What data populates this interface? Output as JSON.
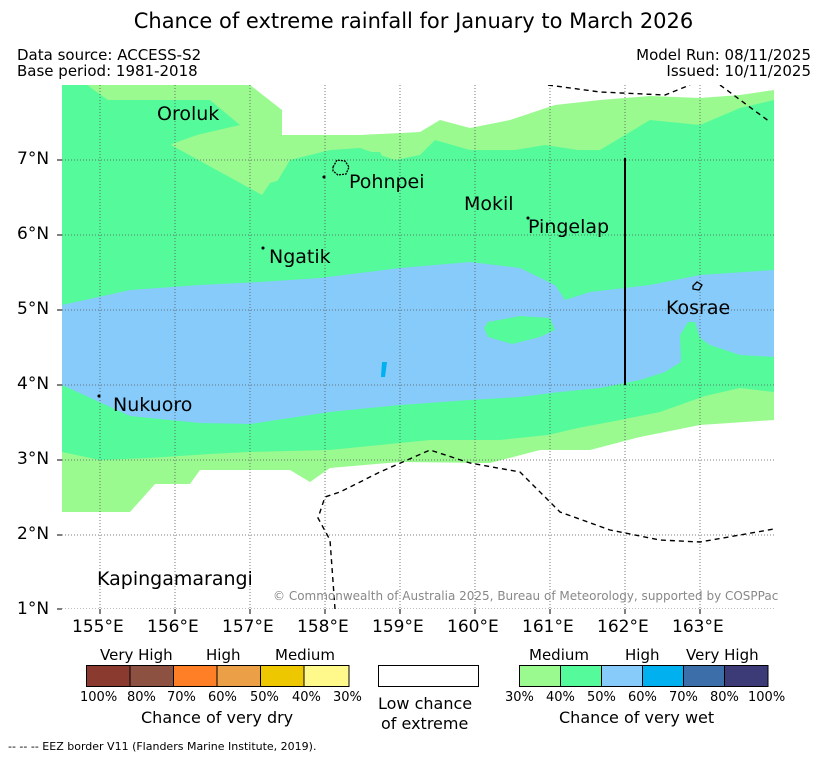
{
  "title": "Chance of extreme rainfall for January to March 2026",
  "meta": {
    "data_source": "Data source: ACCESS-S2",
    "base_period": "Base period: 1981-2018",
    "model_run": "Model Run: 08/11/2025",
    "issued": "Issued: 10/11/2025"
  },
  "axes": {
    "lon_labels": [
      "155°E",
      "156°E",
      "157°E",
      "158°E",
      "159°E",
      "160°E",
      "161°E",
      "162°E",
      "163°E"
    ],
    "lat_labels": [
      "7°N",
      "6°N",
      "5°N",
      "4°N",
      "3°N",
      "2°N",
      "1°N"
    ]
  },
  "places": {
    "oroluk": "Oroluk",
    "pohnpei": "Pohnpei",
    "mokil": "Mokil",
    "pingelap": "Pingelap",
    "ngatik": "Ngatik",
    "kosrae": "Kosrae",
    "nukuoro": "Nukuoro",
    "kapingamarangi": "Kapingamarangi"
  },
  "copyright": "© Commonwealth of Australia 2025, Bureau of Meteorology, supported by COSPPac",
  "legend": {
    "dry": {
      "groups": [
        "Very High",
        "High",
        "Medium"
      ],
      "ticks": [
        "100%",
        "80%",
        "70%",
        "60%",
        "50%",
        "40%",
        "30%"
      ],
      "caption": "Chance of very dry",
      "colors": [
        "#8b3a2f",
        "#8c5140",
        "#ff7f27",
        "#eba048",
        "#edc800",
        "#fff88a"
      ]
    },
    "low": {
      "caption_line1": "Low chance",
      "caption_line2": "of extreme",
      "color": "#ffffff"
    },
    "wet": {
      "groups": [
        "Medium",
        "High",
        "Very High"
      ],
      "ticks": [
        "30%",
        "40%",
        "50%",
        "60%",
        "70%",
        "80%",
        "100%"
      ],
      "caption": "Chance of very wet",
      "colors": [
        "#9bfa8f",
        "#55fb9a",
        "#86cbf9",
        "#00b0ef",
        "#3c6ea9",
        "#3c3b78"
      ]
    }
  },
  "footnote": "-- -- -- EEZ border V11 (Flanders Marine Institute, 2019)."
}
